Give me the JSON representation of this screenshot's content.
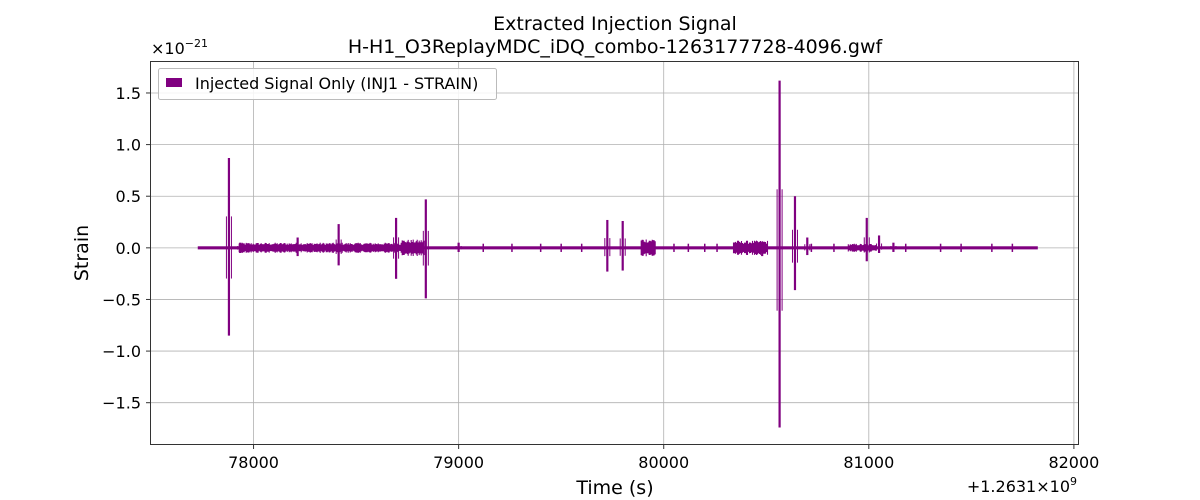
{
  "chart_data": {
    "type": "line",
    "title": "Extracted Injection Signal",
    "subtitle": "H-H1_O3ReplayMDC_iDQ_combo-1263177728-4096.gwf",
    "xlabel": "Time (s)",
    "ylabel": "Strain",
    "x_offset_label": "+1.2631×10",
    "x_offset_exponent": "9",
    "y_scale_label": "×10",
    "y_scale_exponent": "−21",
    "xlim": [
      77500,
      82020
    ],
    "ylim": [
      -1.9,
      1.8
    ],
    "xticks": [
      78000,
      79000,
      80000,
      81000,
      82000
    ],
    "xtick_labels": [
      "78000",
      "79000",
      "80000",
      "81000",
      "82000"
    ],
    "yticks": [
      -1.5,
      -1.0,
      -0.5,
      0.0,
      0.5,
      1.0,
      1.5
    ],
    "ytick_labels": [
      "−1.5",
      "−1.0",
      "−0.5",
      "0.0",
      "0.5",
      "1.0",
      "1.5"
    ],
    "grid": true,
    "legend_position": "top-left",
    "series": [
      {
        "name": "Injected Signal Only (INJ1 - STRAIN)",
        "color": "#800080",
        "time_range": [
          77728,
          81824
        ],
        "baseline_amplitude": 0.015,
        "spikes": [
          {
            "t": 77880,
            "max": 0.87,
            "min": -0.85
          },
          {
            "t": 77935,
            "max": 0.05,
            "min": -0.05
          },
          {
            "t": 78215,
            "max": 0.1,
            "min": -0.08
          },
          {
            "t": 78415,
            "max": 0.23,
            "min": -0.17
          },
          {
            "t": 78695,
            "max": 0.29,
            "min": -0.3
          },
          {
            "t": 78840,
            "max": 0.47,
            "min": -0.49
          },
          {
            "t": 79000,
            "max": 0.05,
            "min": -0.04
          },
          {
            "t": 79725,
            "max": 0.27,
            "min": -0.23
          },
          {
            "t": 79800,
            "max": 0.26,
            "min": -0.22
          },
          {
            "t": 80565,
            "max": 1.62,
            "min": -1.74
          },
          {
            "t": 80480,
            "max": 0.06,
            "min": -0.08
          },
          {
            "t": 80640,
            "max": 0.5,
            "min": -0.41
          },
          {
            "t": 80700,
            "max": 0.1,
            "min": -0.07
          },
          {
            "t": 80990,
            "max": 0.29,
            "min": -0.13
          },
          {
            "t": 81050,
            "max": 0.12,
            "min": -0.05
          },
          {
            "t": 81120,
            "max": 0.05,
            "min": -0.04
          }
        ],
        "bursts": [
          {
            "start": 77930,
            "end": 78720,
            "amplitude": 0.05
          },
          {
            "start": 78720,
            "end": 78835,
            "amplitude": 0.08
          },
          {
            "start": 79890,
            "end": 79960,
            "amplitude": 0.09
          },
          {
            "start": 80340,
            "end": 80510,
            "amplitude": 0.07
          },
          {
            "start": 80900,
            "end": 81040,
            "amplitude": 0.04
          }
        ],
        "blips": [
          79000,
          79120,
          79260,
          79400,
          79500,
          79600,
          80050,
          80120,
          80200,
          80260,
          80720,
          80830,
          81180,
          81350,
          81450,
          81600,
          81700
        ]
      }
    ]
  }
}
